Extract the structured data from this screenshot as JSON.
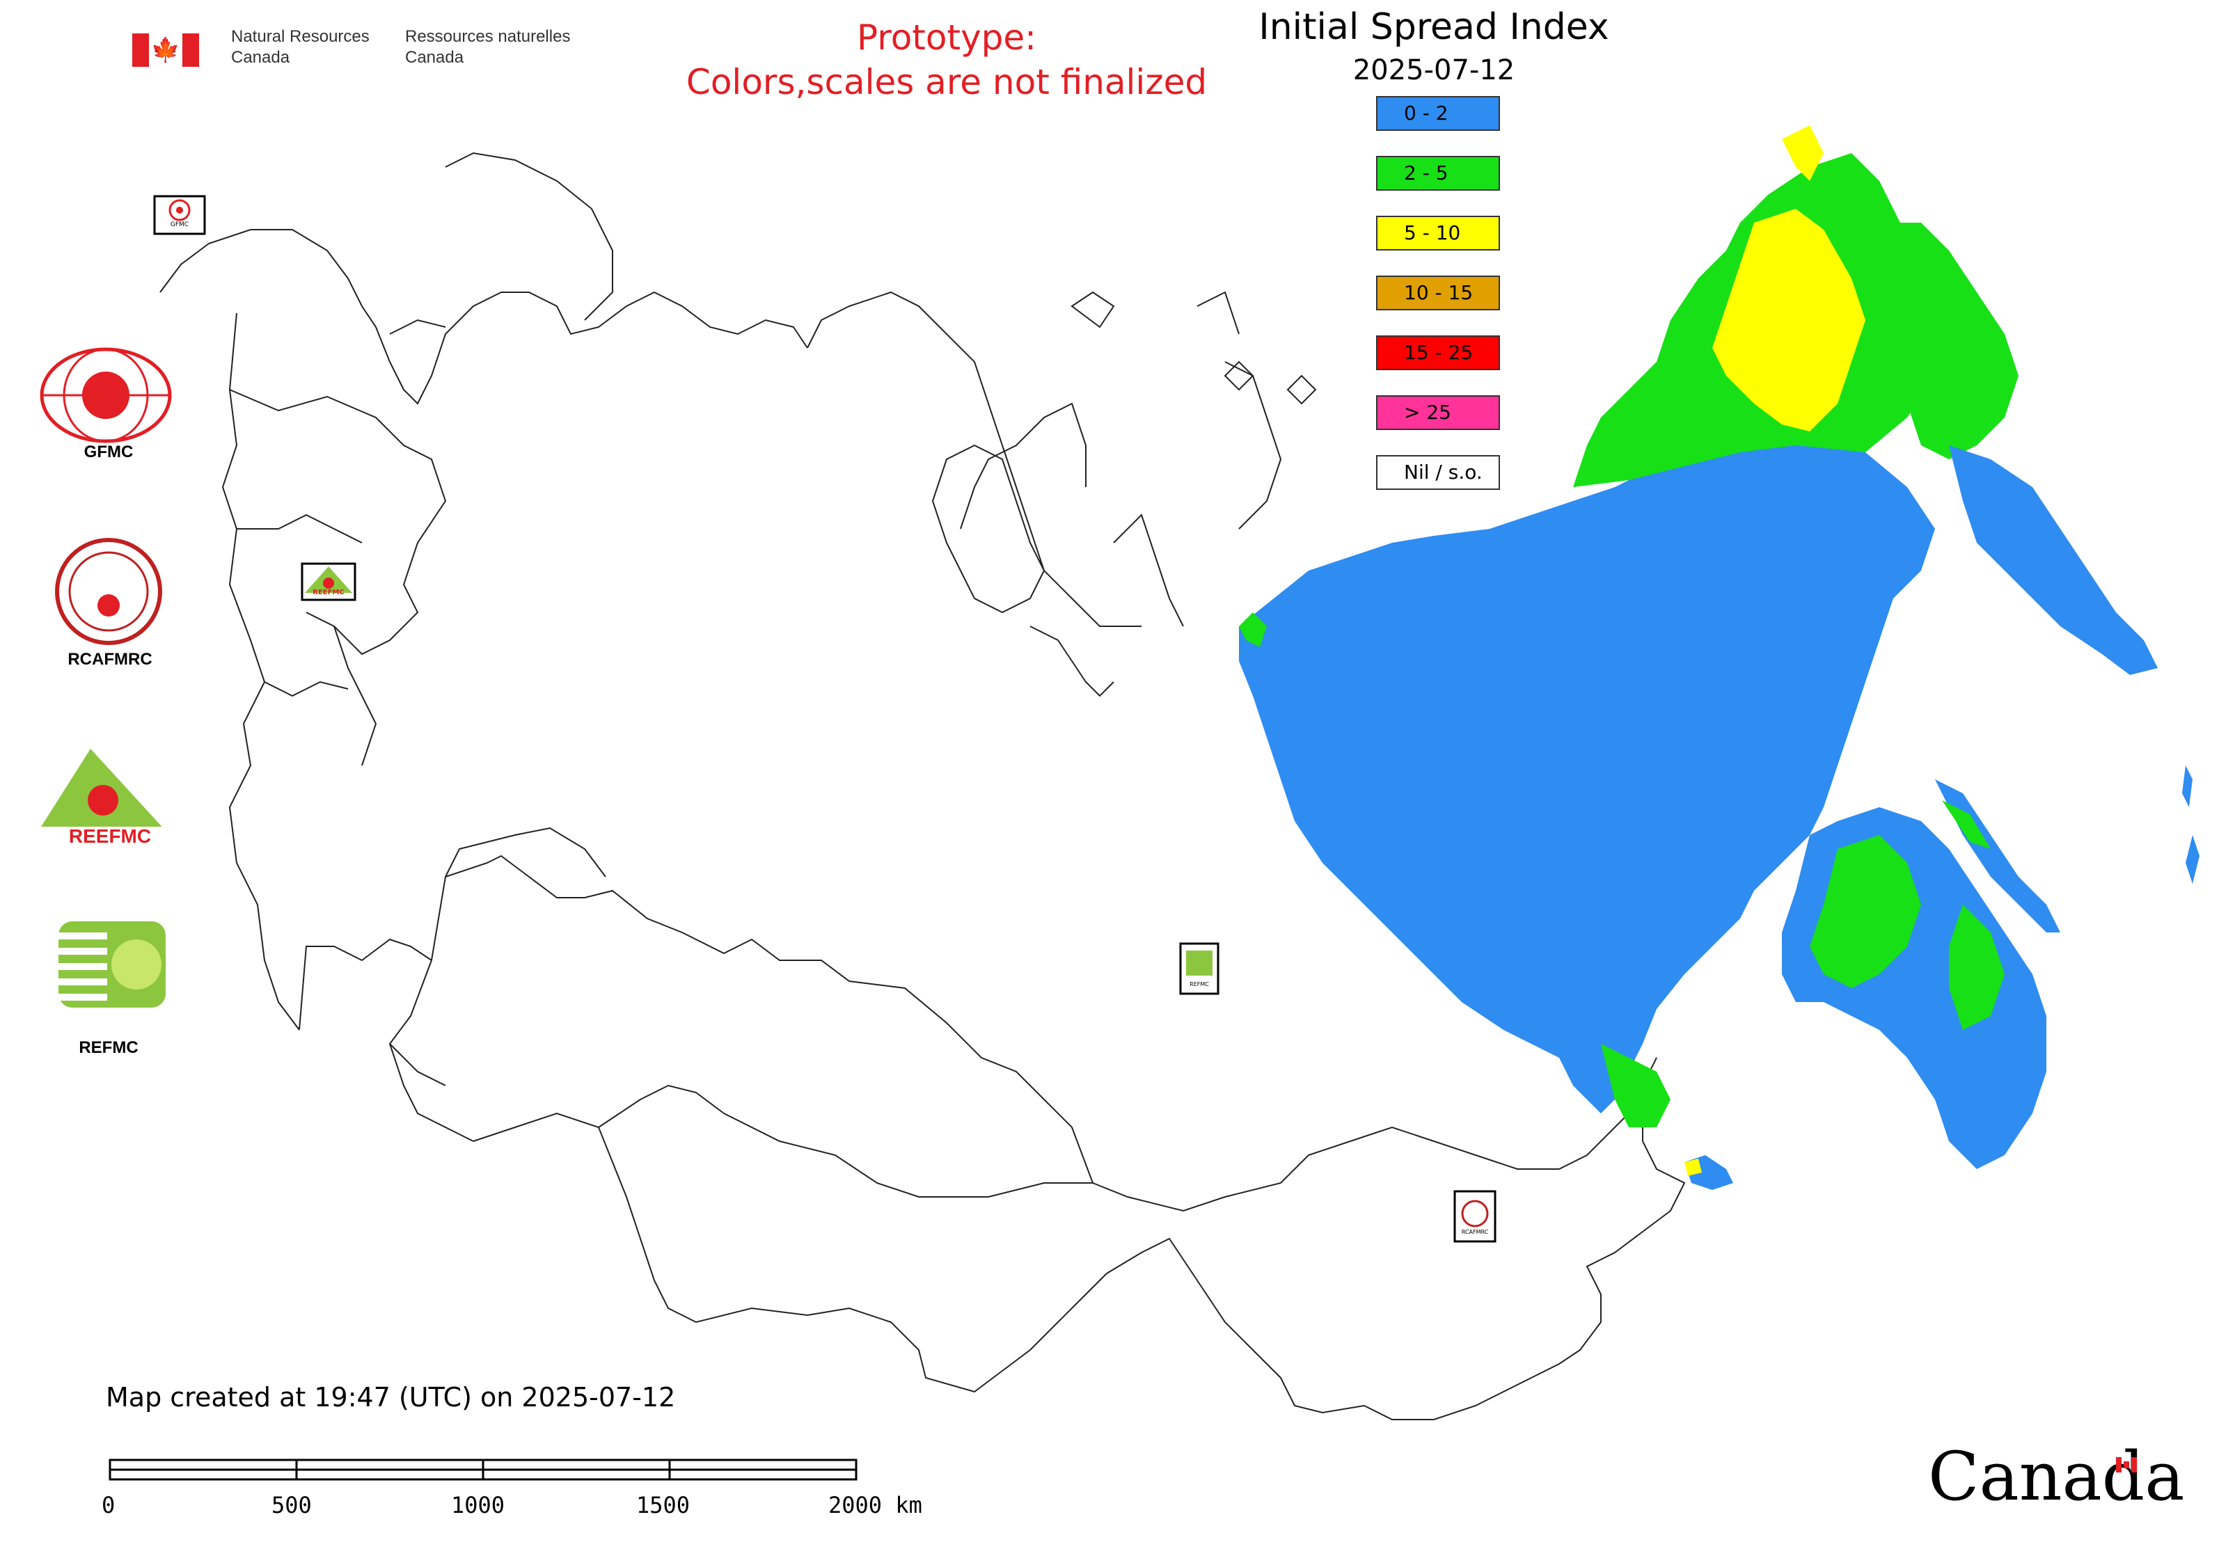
{
  "header": {
    "department_en": [
      "Natural Resources",
      "Canada"
    ],
    "department_fr": [
      "Ressources naturelles",
      "Canada"
    ],
    "prototype_line1": "Prototype:",
    "prototype_line2": "Colors,scales are not finalized"
  },
  "map": {
    "title": "Initial Spread Index",
    "date": "2025-07-12",
    "legend": [
      {
        "label": "0 - 2",
        "color": "#2f8cf0"
      },
      {
        "label": "2 - 5",
        "color": "#17e017"
      },
      {
        "label": "5 - 10",
        "color": "#ffff00"
      },
      {
        "label": "10 - 15",
        "color": "#e0a000"
      },
      {
        "label": "15 - 25",
        "color": "#ff0000"
      },
      {
        "label": "> 25",
        "color": "#ff3399"
      },
      {
        "label": "Nil / s.o.",
        "color": "#ffffff"
      }
    ]
  },
  "logos": {
    "gfmc": "GFMC",
    "rcafmrc": "RCAFMRC",
    "reefmc": "REEFMC",
    "refmc": "REFMC",
    "gfmc_small": "GFMC",
    "rcafmrc_small": "RCAFMRC",
    "reefmc_small": "REEFMC",
    "refmc_small": "REFMC"
  },
  "footer": {
    "created": "Map created at 19:47 (UTC) on 2025-07-12",
    "scale_labels": [
      "0",
      "500",
      "1000",
      "1500",
      "2000 km"
    ],
    "wordmark": "Canada"
  }
}
